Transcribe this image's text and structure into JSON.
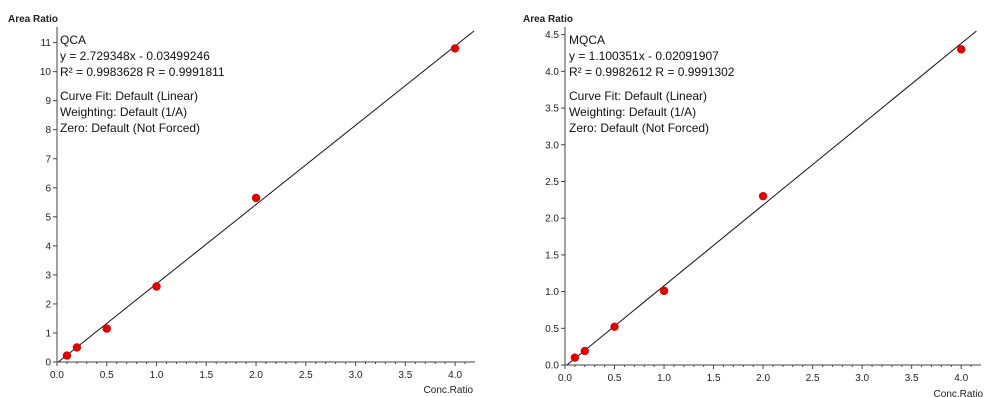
{
  "chart_data": [
    {
      "type": "scatter",
      "ylabel": "Area Ratio",
      "xlabel": "Conc.Ratio",
      "xlim": [
        0,
        4.2
      ],
      "ylim": [
        0,
        11.4
      ],
      "xticks": [
        "0.0",
        "0.5",
        "1.0",
        "1.5",
        "2.0",
        "2.5",
        "3.0",
        "3.5",
        "4.0"
      ],
      "yticks": [
        "0",
        "1",
        "2",
        "3",
        "4",
        "5",
        "6",
        "7",
        "8",
        "9",
        "10",
        "11"
      ],
      "annotation": [
        "QCA",
        "y = 2.729348x - 0.03499246",
        "R² = 0.9983628    R = 0.9991811",
        "Curve Fit: Default (Linear)",
        "Weighting: Default (1/A)",
        "Zero: Default (Not Forced)"
      ],
      "fit": {
        "slope": 2.729348,
        "intercept": -0.03499246
      },
      "points": {
        "x": [
          0.1,
          0.2,
          0.5,
          1.0,
          2.0,
          4.0
        ],
        "y": [
          0.22,
          0.5,
          1.15,
          2.6,
          5.65,
          10.8
        ]
      },
      "point_color": "#e00000"
    },
    {
      "type": "scatter",
      "ylabel": "Area Ratio",
      "xlabel": "Conc.Ratio",
      "xlim": [
        0,
        4.2
      ],
      "ylim": [
        0,
        4.55
      ],
      "xticks": [
        "0.0",
        "0.5",
        "1.0",
        "1.5",
        "2.0",
        "2.5",
        "3.0",
        "3.5",
        "4.0"
      ],
      "yticks": [
        "0.0",
        "0.5",
        "1.0",
        "1.5",
        "2.0",
        "2.5",
        "3.0",
        "3.5",
        "4.0",
        "4.5"
      ],
      "annotation": [
        "MQCA",
        "y = 1.100351x - 0.02091907",
        "R² = 0.9982612    R = 0.9991302",
        "Curve Fit: Default (Linear)",
        "Weighting: Default (1/A)",
        "Zero: Default (Not Forced)"
      ],
      "fit": {
        "slope": 1.100351,
        "intercept": -0.02091907
      },
      "points": {
        "x": [
          0.1,
          0.2,
          0.5,
          1.0,
          2.0,
          4.0
        ],
        "y": [
          0.1,
          0.19,
          0.52,
          1.01,
          2.3,
          4.3
        ]
      },
      "point_color": "#e00000"
    }
  ]
}
